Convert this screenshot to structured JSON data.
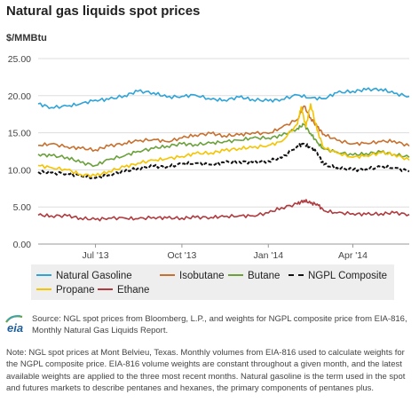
{
  "title": "Natural gas liquids spot prices",
  "y_unit": "$/MMBtu",
  "chart_data": {
    "type": "line",
    "title": "Natural gas liquids spot prices",
    "ylabel": "$/MMBtu",
    "ylim": [
      0,
      25
    ],
    "yticks": [
      "0.00",
      "5.00",
      "10.00",
      "15.00",
      "20.00",
      "25.00"
    ],
    "xlim": [
      "2013-05-01",
      "2014-05-31"
    ],
    "xticks": [
      {
        "date": "2013-07-01",
        "label": "Jul '13"
      },
      {
        "date": "2013-10-01",
        "label": "Oct '13"
      },
      {
        "date": "2014-01-01",
        "label": "Jan '14"
      },
      {
        "date": "2014-04-01",
        "label": "Apr '14"
      }
    ],
    "grid": "horizontal",
    "legend_position": "bottom",
    "series": [
      {
        "name": "Natural Gasoline",
        "color": "#2ea3d7",
        "style": "solid",
        "x": [
          "2013-05-01",
          "2013-05-15",
          "2013-06-01",
          "2013-06-15",
          "2013-07-01",
          "2013-07-15",
          "2013-08-01",
          "2013-08-15",
          "2013-09-01",
          "2013-09-15",
          "2013-10-01",
          "2013-10-15",
          "2013-11-01",
          "2013-11-15",
          "2013-12-01",
          "2013-12-15",
          "2014-01-01",
          "2014-01-15",
          "2014-02-01",
          "2014-02-15",
          "2014-03-01",
          "2014-03-15",
          "2014-04-01",
          "2014-04-15",
          "2014-05-01",
          "2014-05-15",
          "2014-05-31"
        ],
        "values": [
          18.9,
          18.4,
          18.6,
          18.9,
          19.4,
          19.5,
          20.0,
          20.6,
          20.4,
          19.8,
          19.9,
          20.1,
          19.5,
          19.4,
          19.8,
          19.5,
          19.3,
          19.5,
          20.1,
          19.7,
          19.6,
          20.4,
          20.6,
          20.8,
          20.9,
          20.3,
          19.9
        ]
      },
      {
        "name": "Isobutane",
        "color": "#c8702e",
        "style": "solid",
        "x": [
          "2013-05-01",
          "2013-05-15",
          "2013-06-01",
          "2013-06-15",
          "2013-07-01",
          "2013-07-15",
          "2013-08-01",
          "2013-08-15",
          "2013-09-01",
          "2013-09-15",
          "2013-10-01",
          "2013-10-15",
          "2013-11-01",
          "2013-11-15",
          "2013-12-01",
          "2013-12-15",
          "2014-01-01",
          "2014-01-15",
          "2014-02-01",
          "2014-02-08",
          "2014-02-15",
          "2014-02-22",
          "2014-03-01",
          "2014-03-15",
          "2014-04-01",
          "2014-04-15",
          "2014-05-01",
          "2014-05-15",
          "2014-05-31"
        ],
        "values": [
          13.3,
          13.5,
          13.1,
          12.9,
          12.7,
          13.2,
          13.6,
          13.9,
          14.1,
          13.8,
          14.3,
          14.7,
          14.9,
          14.6,
          14.7,
          15.0,
          14.9,
          15.7,
          16.8,
          18.6,
          17.0,
          15.8,
          14.8,
          14.0,
          13.5,
          13.6,
          13.8,
          13.9,
          13.2
        ]
      },
      {
        "name": "Butane",
        "color": "#6aa13a",
        "style": "solid",
        "x": [
          "2013-05-01",
          "2013-05-15",
          "2013-06-01",
          "2013-06-15",
          "2013-07-01",
          "2013-07-15",
          "2013-08-01",
          "2013-08-15",
          "2013-09-01",
          "2013-09-15",
          "2013-10-01",
          "2013-10-15",
          "2013-11-01",
          "2013-11-15",
          "2013-12-01",
          "2013-12-15",
          "2014-01-01",
          "2014-01-15",
          "2014-02-01",
          "2014-02-08",
          "2014-02-15",
          "2014-02-22",
          "2014-03-01",
          "2014-03-15",
          "2014-04-01",
          "2014-04-15",
          "2014-05-01",
          "2014-05-15",
          "2014-05-31"
        ],
        "values": [
          12.1,
          11.9,
          11.7,
          11.0,
          10.6,
          11.4,
          11.9,
          12.5,
          12.9,
          13.2,
          13.5,
          13.4,
          13.6,
          13.8,
          14.0,
          14.3,
          14.3,
          14.6,
          15.6,
          16.1,
          14.9,
          13.7,
          12.8,
          12.4,
          12.0,
          12.2,
          12.4,
          12.1,
          11.7
        ]
      },
      {
        "name": "NGPL Composite",
        "color": "#111111",
        "style": "dashed",
        "x": [
          "2013-05-01",
          "2013-05-15",
          "2013-06-01",
          "2013-06-15",
          "2013-07-01",
          "2013-07-15",
          "2013-08-01",
          "2013-08-15",
          "2013-09-01",
          "2013-09-15",
          "2013-10-01",
          "2013-10-15",
          "2013-11-01",
          "2013-11-15",
          "2013-12-01",
          "2013-12-15",
          "2014-01-01",
          "2014-01-15",
          "2014-02-01",
          "2014-02-08",
          "2014-02-15",
          "2014-02-22",
          "2014-03-01",
          "2014-03-15",
          "2014-04-01",
          "2014-04-15",
          "2014-05-01",
          "2014-05-15",
          "2014-05-31"
        ],
        "values": [
          9.7,
          9.6,
          9.5,
          9.2,
          8.9,
          9.3,
          9.8,
          10.2,
          10.5,
          10.4,
          10.8,
          10.9,
          10.7,
          11.0,
          11.1,
          11.0,
          11.2,
          11.6,
          13.2,
          13.5,
          13.0,
          12.3,
          10.7,
          10.3,
          10.0,
          10.1,
          10.4,
          10.3,
          9.8
        ]
      },
      {
        "name": "Propane",
        "color": "#f5c400",
        "style": "solid",
        "x": [
          "2013-05-01",
          "2013-05-15",
          "2013-06-01",
          "2013-06-15",
          "2013-07-01",
          "2013-07-15",
          "2013-08-01",
          "2013-08-15",
          "2013-09-01",
          "2013-09-15",
          "2013-10-01",
          "2013-10-15",
          "2013-11-01",
          "2013-11-15",
          "2013-12-01",
          "2013-12-15",
          "2014-01-01",
          "2014-01-15",
          "2014-02-01",
          "2014-02-05",
          "2014-02-10",
          "2014-02-15",
          "2014-02-22",
          "2014-03-01",
          "2014-03-15",
          "2014-04-01",
          "2014-04-15",
          "2014-05-01",
          "2014-05-15",
          "2014-05-31"
        ],
        "values": [
          10.6,
          10.3,
          10.0,
          9.4,
          9.2,
          9.8,
          10.4,
          10.9,
          11.3,
          11.5,
          11.8,
          12.2,
          12.3,
          12.6,
          12.9,
          13.0,
          13.3,
          13.8,
          16.2,
          18.5,
          15.8,
          18.9,
          15.3,
          13.0,
          12.3,
          11.7,
          11.9,
          12.3,
          12.1,
          11.3
        ]
      },
      {
        "name": "Ethane",
        "color": "#b03a3e",
        "style": "solid",
        "x": [
          "2013-05-01",
          "2013-05-15",
          "2013-06-01",
          "2013-06-15",
          "2013-07-01",
          "2013-07-15",
          "2013-08-01",
          "2013-08-15",
          "2013-09-01",
          "2013-09-15",
          "2013-10-01",
          "2013-10-15",
          "2013-11-01",
          "2013-11-15",
          "2013-12-01",
          "2013-12-15",
          "2014-01-01",
          "2014-01-15",
          "2014-02-01",
          "2014-02-08",
          "2014-02-15",
          "2014-02-22",
          "2014-03-01",
          "2014-03-15",
          "2014-04-01",
          "2014-04-15",
          "2014-05-01",
          "2014-05-15",
          "2014-05-31"
        ],
        "values": [
          3.9,
          3.8,
          3.8,
          3.5,
          3.3,
          3.5,
          3.5,
          3.4,
          3.6,
          3.5,
          3.5,
          3.6,
          3.6,
          3.7,
          3.8,
          3.8,
          4.2,
          4.9,
          5.4,
          5.9,
          5.5,
          5.4,
          4.5,
          4.2,
          4.1,
          4.0,
          4.1,
          4.2,
          4.0
        ]
      }
    ]
  },
  "legend": [
    {
      "label": "Natural Gasoline",
      "color": "#2ea3d7",
      "style": "solid"
    },
    {
      "label": "Isobutane",
      "color": "#c8702e",
      "style": "solid"
    },
    {
      "label": "Butane",
      "color": "#6aa13a",
      "style": "solid"
    },
    {
      "label": "NGPL Composite",
      "color": "#111111",
      "style": "dashed"
    },
    {
      "label": "Propane",
      "color": "#f5c400",
      "style": "solid"
    },
    {
      "label": "Ethane",
      "color": "#b03a3e",
      "style": "solid"
    }
  ],
  "logo_text": "eia",
  "source": "Source: NGL spot prices from Bloomberg, L.P., and weights for NGPL composite price from EIA-816, Monthly Natural Gas Liquids Report.",
  "note": "Note: NGL spot prices at Mont Belvieu, Texas. Monthly volumes from EIA-816 used to calculate weights for the NGPL composite price. EIA-816 volume weights are constant throughout a given month, and the latest available weights are applied to the three most recent months. Natural gasoline is the term used in the spot and futures markets to describe pentanes and hexanes, the primary components of pentanes plus."
}
